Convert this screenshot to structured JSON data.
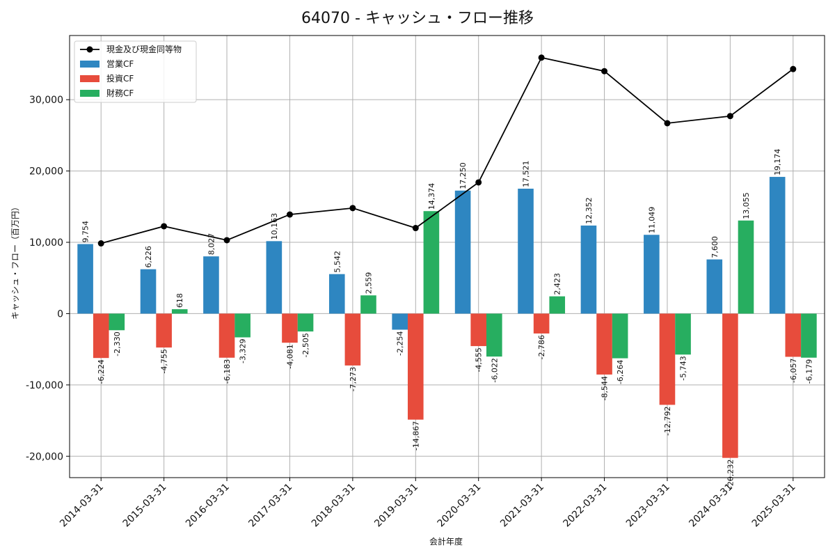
{
  "chart_data": {
    "type": "bar",
    "title": "64070 - キャッシュ・フロー推移",
    "xlabel": "会計年度",
    "ylabel": "キャッシュ・フロー（百万円）",
    "categories": [
      "2014-03-31",
      "2015-03-31",
      "2016-03-31",
      "2017-03-31",
      "2018-03-31",
      "2019-03-31",
      "2020-03-31",
      "2021-03-31",
      "2022-03-31",
      "2023-03-31",
      "2024-03-31",
      "2025-03-31"
    ],
    "ylim": [
      -23000,
      39000
    ],
    "yticks": [
      -20000,
      -10000,
      0,
      10000,
      20000,
      30000
    ],
    "ytick_labels": [
      "-20,000",
      "-10,000",
      "0",
      "10,000",
      "20,000",
      "30,000"
    ],
    "grid": true,
    "legend_position": "top-left",
    "series": [
      {
        "name": "営業CF",
        "kind": "bar",
        "color": "#2e86c1",
        "values": [
          9754,
          6226,
          8027,
          10163,
          5542,
          -2254,
          17250,
          17521,
          12352,
          11049,
          7600,
          19174
        ],
        "labels": [
          "9,754",
          "6,226",
          "8,027",
          "10,163",
          "5,542",
          "-2,254",
          "17,250",
          "17,521",
          "12,352",
          "11,049",
          "7,600",
          "19,174"
        ]
      },
      {
        "name": "投資CF",
        "kind": "bar",
        "color": "#e74c3c",
        "values": [
          -6224,
          -4755,
          -6183,
          -4081,
          -7273,
          -14867,
          -4555,
          -2786,
          -8544,
          -12792,
          -20232,
          -6057
        ],
        "labels": [
          "-6,224",
          "-4,755",
          "-6,183",
          "-4,081",
          "-7,273",
          "-14,867",
          "-4,555",
          "-2,786",
          "-8,544",
          "-12,792",
          "-20,232",
          "-6,057"
        ]
      },
      {
        "name": "財務CF",
        "kind": "bar",
        "color": "#27ae60",
        "values": [
          -2330,
          618,
          -3329,
          -2505,
          2559,
          14374,
          -6022,
          2423,
          -6264,
          -5743,
          13055,
          -6179
        ],
        "labels": [
          "-2,330",
          "618",
          "-3,329",
          "-2,505",
          "2,559",
          "14,374",
          "-6,022",
          "2,423",
          "-6,264",
          "-5,743",
          "13,055",
          "-6,179"
        ]
      },
      {
        "name": "現金及び現金同等物",
        "kind": "line",
        "color": "#000000",
        "values": [
          9850,
          12250,
          10300,
          13900,
          14800,
          12000,
          18400,
          35900,
          34000,
          26700,
          27700,
          34300
        ]
      }
    ]
  }
}
